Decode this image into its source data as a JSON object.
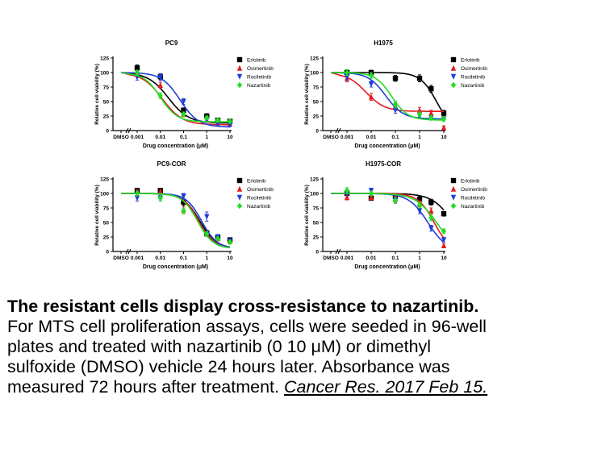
{
  "legend_items": [
    {
      "name": "Erlotinib",
      "color": "#000000",
      "marker": "square"
    },
    {
      "name": "Osimertinib",
      "color": "#e41a1c",
      "marker": "triangle-up"
    },
    {
      "name": "Rociletinib",
      "color": "#1f3fd6",
      "marker": "triangle-down"
    },
    {
      "name": "Nazartinib",
      "color": "#22dd22",
      "marker": "diamond"
    }
  ],
  "chart_data": [
    {
      "type": "scatter",
      "title": "PC9",
      "xlabel": "Drug concentration (μM)",
      "ylabel": "Relative cell viability (%)",
      "x_ticks": [
        "DMSO",
        "0.001",
        "0.01",
        "0.1",
        "1",
        "10"
      ],
      "y_ticks": [
        "0",
        "25",
        "50",
        "75",
        "100",
        "125"
      ],
      "ylim": [
        0,
        125
      ],
      "x": [
        0.001,
        0.01,
        0.1,
        1,
        3,
        10
      ],
      "series": [
        {
          "name": "Erlotinib",
          "points": [
            [
              0.001,
              108
            ],
            [
              0.01,
              93
            ],
            [
              0.1,
              35
            ],
            [
              1,
              25
            ],
            [
              3,
              18
            ],
            [
              10,
              16
            ]
          ],
          "errors": [
            5,
            5,
            4,
            4,
            3,
            3
          ],
          "curve": [
            100,
            13,
            0.022,
            1.0
          ]
        },
        {
          "name": "Osimertinib",
          "points": [
            [
              0.001,
              100
            ],
            [
              0.01,
              78
            ],
            [
              0.1,
              28
            ],
            [
              1,
              18
            ],
            [
              3,
              14
            ],
            [
              10,
              12
            ]
          ],
          "errors": [
            4,
            5,
            4,
            3,
            3,
            3
          ],
          "curve": [
            100,
            10,
            0.012,
            1.0
          ]
        },
        {
          "name": "Rociletinib",
          "points": [
            [
              0.001,
              92
            ],
            [
              0.01,
              92
            ],
            [
              0.1,
              50
            ],
            [
              1,
              18
            ],
            [
              3,
              12
            ],
            [
              10,
              10
            ]
          ],
          "errors": [
            5,
            6,
            5,
            3,
            3,
            3
          ],
          "curve": [
            100,
            6,
            0.07,
            1.1
          ]
        },
        {
          "name": "Nazartinib",
          "points": [
            [
              0.001,
              100
            ],
            [
              0.01,
              60
            ],
            [
              0.1,
              28
            ],
            [
              1,
              22
            ],
            [
              3,
              18
            ],
            [
              10,
              16
            ]
          ],
          "errors": [
            4,
            5,
            4,
            3,
            3,
            3
          ],
          "curve": [
            100,
            15,
            0.01,
            1.2
          ]
        }
      ]
    },
    {
      "type": "scatter",
      "title": "H1975",
      "xlabel": "Drug concentration (μM)",
      "ylabel": "Relative cell viability (%)",
      "x_ticks": [
        "DMSO",
        "0.001",
        "0.01",
        "0.1",
        "1",
        "10"
      ],
      "y_ticks": [
        "0",
        "25",
        "50",
        "75",
        "100",
        "125"
      ],
      "ylim": [
        0,
        125
      ],
      "x": [
        0.001,
        0.01,
        0.1,
        1,
        3,
        10
      ],
      "series": [
        {
          "name": "Erlotinib",
          "points": [
            [
              0.001,
              100
            ],
            [
              0.01,
              100
            ],
            [
              0.1,
              90
            ],
            [
              1,
              90
            ],
            [
              3,
              72
            ],
            [
              10,
              30
            ]
          ],
          "errors": [
            4,
            4,
            5,
            6,
            6,
            5
          ],
          "curve": [
            100,
            0,
            5,
            1.3
          ]
        },
        {
          "name": "Osimertinib",
          "points": [
            [
              0.001,
              90
            ],
            [
              0.01,
              58
            ],
            [
              0.1,
              42
            ],
            [
              1,
              35
            ],
            [
              3,
              30
            ],
            [
              10,
              5
            ]
          ],
          "errors": [
            6,
            6,
            6,
            5,
            5,
            3
          ],
          "curve": [
            100,
            33,
            0.006,
            1.1
          ]
        },
        {
          "name": "Rociletinib",
          "points": [
            [
              0.001,
              92
            ],
            [
              0.01,
              80
            ],
            [
              0.1,
              35
            ],
            [
              1,
              25
            ],
            [
              3,
              22
            ],
            [
              10,
              20
            ]
          ],
          "errors": [
            5,
            5,
            5,
            4,
            4,
            4
          ],
          "curve": [
            100,
            20,
            0.04,
            1.2
          ]
        },
        {
          "name": "Nazartinib",
          "points": [
            [
              0.001,
              100
            ],
            [
              0.01,
              95
            ],
            [
              0.1,
              45
            ],
            [
              1,
              28
            ],
            [
              3,
              22
            ],
            [
              10,
              20
            ]
          ],
          "errors": [
            5,
            5,
            6,
            4,
            4,
            4
          ],
          "curve": [
            100,
            18,
            0.07,
            1.3
          ]
        }
      ]
    },
    {
      "type": "scatter",
      "title": "PC9-COR",
      "xlabel": "Drug concentration (μM)",
      "ylabel": "Relative cell viability (%)",
      "x_ticks": [
        "DMSO",
        "0.001",
        "0.01",
        "0.1",
        "1",
        "10"
      ],
      "y_ticks": [
        "0",
        "25",
        "50",
        "75",
        "100",
        "125"
      ],
      "ylim": [
        0,
        125
      ],
      "x": [
        0.001,
        0.01,
        0.1,
        1,
        3,
        10
      ],
      "series": [
        {
          "name": "Erlotinib",
          "points": [
            [
              0.001,
              105
            ],
            [
              0.01,
              105
            ],
            [
              0.1,
              85
            ],
            [
              1,
              32
            ],
            [
              3,
              25
            ],
            [
              10,
              20
            ]
          ],
          "errors": [
            4,
            4,
            6,
            4,
            3,
            3
          ],
          "curve": [
            100,
            5,
            0.5,
            1.2
          ]
        },
        {
          "name": "Osimertinib",
          "points": [
            [
              0.001,
              103
            ],
            [
              0.01,
              103
            ],
            [
              0.1,
              72
            ],
            [
              1,
              30
            ],
            [
              3,
              22
            ],
            [
              10,
              18
            ]
          ],
          "errors": [
            4,
            4,
            6,
            4,
            3,
            3
          ],
          "curve": [
            100,
            5,
            0.45,
            1.3
          ]
        },
        {
          "name": "Rociletinib",
          "points": [
            [
              0.001,
              92
            ],
            [
              0.01,
              92
            ],
            [
              0.1,
              95
            ],
            [
              1,
              60
            ],
            [
              3,
              25
            ],
            [
              10,
              18
            ]
          ],
          "errors": [
            5,
            5,
            5,
            8,
            4,
            3
          ],
          "curve": [
            100,
            5,
            0.6,
            1.3
          ]
        },
        {
          "name": "Nazartinib",
          "points": [
            [
              0.001,
              100
            ],
            [
              0.01,
              92
            ],
            [
              0.1,
              70
            ],
            [
              1,
              30
            ],
            [
              3,
              22
            ],
            [
              10,
              16
            ]
          ],
          "errors": [
            4,
            5,
            5,
            4,
            3,
            3
          ],
          "curve": [
            100,
            5,
            0.4,
            1.3
          ]
        }
      ]
    },
    {
      "type": "scatter",
      "title": "H1975-COR",
      "xlabel": "Drug concentration (μM)",
      "ylabel": "Relative cell viability (%)",
      "x_ticks": [
        "DMSO",
        "0.001",
        "0.01",
        "0.1",
        "1",
        "10"
      ],
      "y_ticks": [
        "0",
        "25",
        "50",
        "75",
        "100",
        "125"
      ],
      "ylim": [
        0,
        125
      ],
      "x": [
        0.001,
        0.01,
        0.1,
        1,
        3,
        10
      ],
      "series": [
        {
          "name": "Erlotinib",
          "points": [
            [
              0.001,
              100
            ],
            [
              0.01,
              92
            ],
            [
              0.1,
              95
            ],
            [
              1,
              90
            ],
            [
              3,
              85
            ],
            [
              10,
              65
            ]
          ],
          "errors": [
            4,
            4,
            5,
            5,
            5,
            4
          ],
          "curve": [
            100,
            0,
            25,
            1.0
          ]
        },
        {
          "name": "Osimertinib",
          "points": [
            [
              0.001,
              93
            ],
            [
              0.01,
              93
            ],
            [
              0.1,
              90
            ],
            [
              1,
              82
            ],
            [
              3,
              70
            ],
            [
              10,
              10
            ]
          ],
          "errors": [
            4,
            4,
            5,
            5,
            5,
            3
          ],
          "curve": [
            100,
            0,
            4,
            1.3
          ]
        },
        {
          "name": "Rociletinib",
          "points": [
            [
              0.001,
              100
            ],
            [
              0.01,
              105
            ],
            [
              0.1,
              88
            ],
            [
              1,
              70
            ],
            [
              3,
              40
            ],
            [
              10,
              20
            ]
          ],
          "errors": [
            4,
            4,
            5,
            5,
            5,
            4
          ],
          "curve": [
            100,
            0,
            2.2,
            1.1
          ]
        },
        {
          "name": "Nazartinib",
          "points": [
            [
              0.001,
              105
            ],
            [
              0.01,
              100
            ],
            [
              0.1,
              88
            ],
            [
              1,
              80
            ],
            [
              3,
              58
            ],
            [
              10,
              35
            ]
          ],
          "errors": [
            5,
            4,
            5,
            5,
            5,
            4
          ],
          "curve": [
            100,
            0,
            5,
            1.0
          ]
        }
      ]
    }
  ],
  "caption": {
    "title": "The resistant cells display cross-resistance to nazartinib.",
    "line1": "For MTS cell proliferation assays, cells were seeded in 96-well",
    "line2": "plates and treated with nazartinib (0 10 μM) or dimethyl",
    "line3": "sulfoxide (DMSO) vehicle 24 hours later. Absorbance was",
    "line4": "measured 72 hours after treatment.",
    "reference": "Cancer Res. 2017 Feb 15."
  }
}
